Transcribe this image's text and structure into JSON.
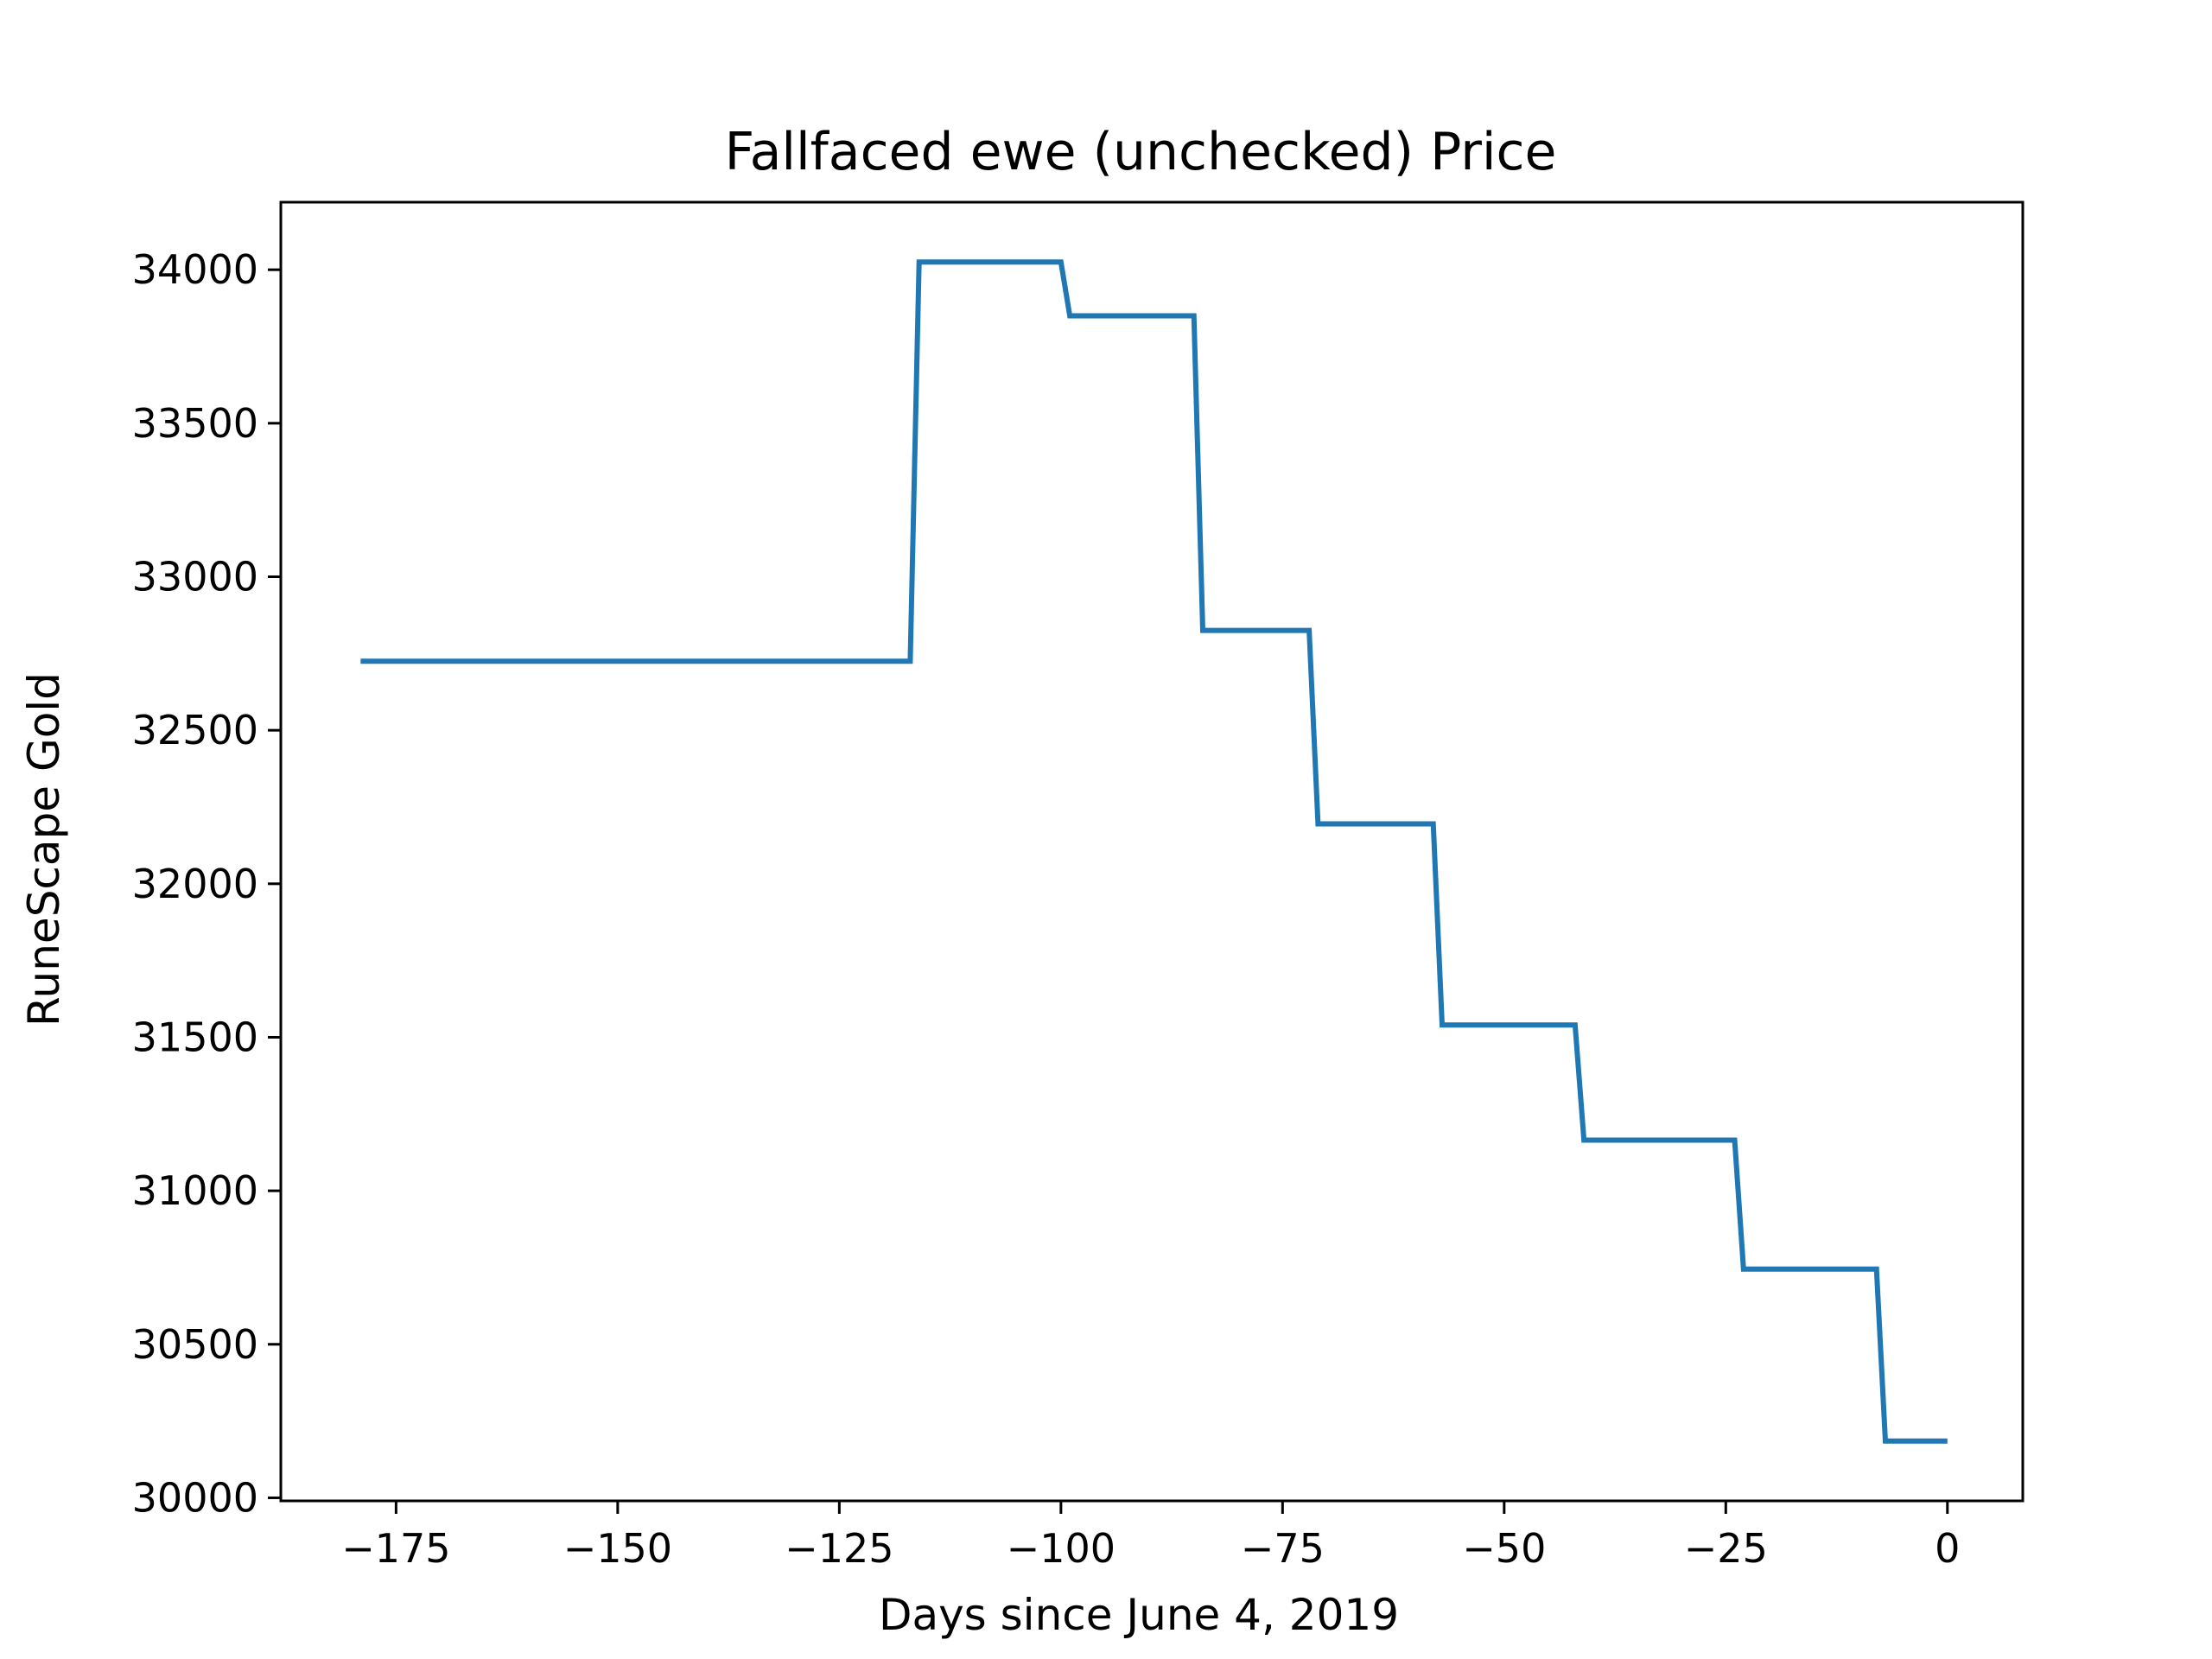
{
  "chart_data": {
    "type": "line",
    "title": "Fallfaced ewe (unchecked) Price",
    "xlabel": "Days since June 4, 2019",
    "ylabel": "RuneScape Gold",
    "xlim": [
      -188,
      8.5
    ],
    "ylim": [
      29990,
      34220
    ],
    "xticks": [
      -175,
      -150,
      -125,
      -100,
      -75,
      -50,
      -25,
      0
    ],
    "xtick_labels": [
      "−175",
      "−150",
      "−125",
      "−100",
      "−75",
      "−50",
      "−25",
      "0"
    ],
    "yticks": [
      30000,
      30500,
      31000,
      31500,
      32000,
      32500,
      33000,
      33500,
      34000
    ],
    "ytick_labels": [
      "30000",
      "30500",
      "31000",
      "31500",
      "32000",
      "32500",
      "33000",
      "33500",
      "34000"
    ],
    "grid": false,
    "series": [
      {
        "color": "#1f77b4",
        "x": [
          -179,
          -117,
          -116,
          -100,
          -99,
          -85,
          -84,
          -72,
          -71,
          -58,
          -57,
          -42,
          -41,
          -24,
          -23,
          -8,
          -7,
          0
        ],
        "y": [
          32725,
          32725,
          34025,
          34025,
          33850,
          33850,
          32825,
          32825,
          32195,
          32195,
          31540,
          31540,
          31165,
          31165,
          30745,
          30745,
          30185,
          30185
        ]
      }
    ]
  }
}
